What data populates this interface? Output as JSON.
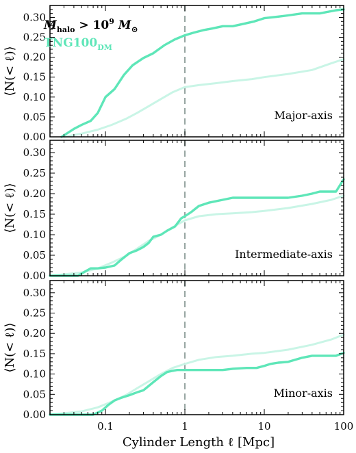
{
  "figure": {
    "xlabel": "Cylinder Length ℓ [Mpc]",
    "ylabel": "⟨N(< ℓ)⟩",
    "legend": {
      "mass_cut_prefix": "M",
      "mass_cut_sub": "halo",
      "mass_cut_rel": " > 10",
      "mass_cut_exp": "9",
      "mass_cut_unit": " M",
      "mass_cut_unit_sub": "⊙",
      "series_name": "TNG100",
      "series_sub": "DM"
    },
    "x_tick_labels": [
      "0.1",
      "1",
      "10",
      "100"
    ],
    "y_tick_labels": [
      "0.00",
      "0.05",
      "0.10",
      "0.15",
      "0.20",
      "0.25",
      "0.30"
    ]
  },
  "chart_data": [
    {
      "type": "line",
      "panel": "Major-axis",
      "annotation": "Major-axis",
      "xscale": "log",
      "xlim": [
        0.02,
        100
      ],
      "ylim": [
        0,
        0.33
      ],
      "reference_line_x": 1,
      "colors": {
        "primary": "#5ee6b8",
        "faint": "#c9f5e6",
        "reference": "#9aa8a4"
      },
      "series": [
        {
          "name": "TNG100_DM",
          "style": "solid",
          "x": [
            0.028,
            0.04,
            0.05,
            0.065,
            0.08,
            0.1,
            0.13,
            0.17,
            0.22,
            0.3,
            0.4,
            0.55,
            0.75,
            1.0,
            1.3,
            1.7,
            2.2,
            3.0,
            4.0,
            5.5,
            7.5,
            10,
            15,
            20,
            30,
            50,
            80,
            100
          ],
          "y": [
            0.0,
            0.02,
            0.03,
            0.04,
            0.06,
            0.1,
            0.12,
            0.155,
            0.18,
            0.198,
            0.21,
            0.23,
            0.245,
            0.255,
            0.262,
            0.268,
            0.272,
            0.278,
            0.278,
            0.284,
            0.29,
            0.298,
            0.302,
            0.305,
            0.31,
            0.31,
            0.318,
            0.32
          ]
        },
        {
          "name": "",
          "style": "faint",
          "x": [
            0.03,
            0.05,
            0.08,
            0.12,
            0.18,
            0.25,
            0.35,
            0.5,
            0.7,
            1.0,
            1.5,
            2.5,
            4,
            7,
            10,
            20,
            40,
            70,
            100
          ],
          "y": [
            0.0,
            0.008,
            0.018,
            0.03,
            0.045,
            0.06,
            0.077,
            0.095,
            0.112,
            0.125,
            0.13,
            0.135,
            0.14,
            0.145,
            0.15,
            0.158,
            0.168,
            0.185,
            0.195
          ]
        }
      ]
    },
    {
      "type": "line",
      "panel": "Intermediate-axis",
      "annotation": "Intermediate-axis",
      "xscale": "log",
      "xlim": [
        0.02,
        100
      ],
      "ylim": [
        0,
        0.33
      ],
      "reference_line_x": 1,
      "series": [
        {
          "name": "TNG100_DM",
          "style": "solid",
          "x": [
            0.02,
            0.045,
            0.055,
            0.065,
            0.08,
            0.1,
            0.13,
            0.16,
            0.2,
            0.25,
            0.3,
            0.35,
            0.4,
            0.5,
            0.6,
            0.75,
            0.9,
            1.0,
            1.2,
            1.5,
            2.0,
            3.0,
            4.0,
            6.0,
            10,
            15,
            20,
            30,
            40,
            50,
            60,
            80,
            100
          ],
          "y": [
            0.0,
            0.0,
            0.01,
            0.018,
            0.018,
            0.02,
            0.025,
            0.04,
            0.055,
            0.062,
            0.07,
            0.08,
            0.095,
            0.1,
            0.11,
            0.12,
            0.14,
            0.145,
            0.155,
            0.17,
            0.178,
            0.185,
            0.19,
            0.19,
            0.19,
            0.19,
            0.19,
            0.195,
            0.2,
            0.205,
            0.205,
            0.205,
            0.235
          ]
        },
        {
          "name": "",
          "style": "faint",
          "x": [
            0.02,
            0.05,
            0.08,
            0.12,
            0.18,
            0.25,
            0.35,
            0.5,
            0.7,
            1.0,
            1.5,
            2.5,
            4,
            7,
            10,
            20,
            40,
            70,
            100
          ],
          "y": [
            0.0,
            0.008,
            0.018,
            0.032,
            0.048,
            0.066,
            0.085,
            0.1,
            0.118,
            0.135,
            0.145,
            0.15,
            0.152,
            0.155,
            0.158,
            0.165,
            0.175,
            0.185,
            0.195
          ]
        }
      ]
    },
    {
      "type": "line",
      "panel": "Minor-axis",
      "annotation": "Minor-axis",
      "xscale": "log",
      "xlim": [
        0.02,
        100
      ],
      "ylim": [
        0,
        0.33
      ],
      "reference_line_x": 1,
      "series": [
        {
          "name": "TNG100_DM",
          "style": "solid",
          "x": [
            0.02,
            0.07,
            0.09,
            0.11,
            0.13,
            0.16,
            0.2,
            0.25,
            0.3,
            0.4,
            0.5,
            0.6,
            0.7,
            0.8,
            1.0,
            1.5,
            2.0,
            3.0,
            4.0,
            6.0,
            8.0,
            10,
            12,
            15,
            20,
            30,
            40,
            60,
            80,
            100
          ],
          "y": [
            0.0,
            0.0,
            0.01,
            0.025,
            0.035,
            0.042,
            0.048,
            0.055,
            0.06,
            0.08,
            0.095,
            0.105,
            0.108,
            0.11,
            0.11,
            0.11,
            0.11,
            0.11,
            0.113,
            0.115,
            0.115,
            0.12,
            0.125,
            0.128,
            0.13,
            0.14,
            0.145,
            0.145,
            0.145,
            0.152
          ]
        },
        {
          "name": "",
          "style": "faint",
          "x": [
            0.02,
            0.05,
            0.08,
            0.12,
            0.18,
            0.25,
            0.35,
            0.5,
            0.7,
            1.0,
            1.5,
            2.5,
            4,
            7,
            10,
            20,
            40,
            70,
            100
          ],
          "y": [
            0.0,
            0.008,
            0.018,
            0.032,
            0.048,
            0.065,
            0.082,
            0.1,
            0.115,
            0.125,
            0.135,
            0.142,
            0.145,
            0.15,
            0.152,
            0.16,
            0.172,
            0.185,
            0.197
          ]
        }
      ]
    }
  ]
}
